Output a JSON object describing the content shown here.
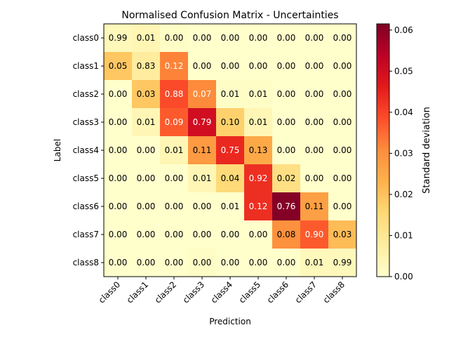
{
  "chart_data": {
    "type": "heatmap",
    "title": "Normalised Confusion Matrix - Uncertainties",
    "xlabel": "Prediction",
    "ylabel": "Label",
    "x_categories": [
      "class0",
      "class1",
      "class2",
      "class3",
      "class4",
      "class5",
      "class6",
      "class7",
      "class8"
    ],
    "y_categories": [
      "class0",
      "class1",
      "class2",
      "class3",
      "class4",
      "class5",
      "class6",
      "class7",
      "class8"
    ],
    "cell_labels": [
      [
        "0.99",
        "0.01",
        "0.00",
        "0.00",
        "0.00",
        "0.00",
        "0.00",
        "0.00",
        "0.00"
      ],
      [
        "0.05",
        "0.83",
        "0.12",
        "0.00",
        "0.00",
        "0.00",
        "0.00",
        "0.00",
        "0.00"
      ],
      [
        "0.00",
        "0.03",
        "0.88",
        "0.07",
        "0.01",
        "0.01",
        "0.00",
        "0.00",
        "0.00"
      ],
      [
        "0.00",
        "0.01",
        "0.09",
        "0.79",
        "0.10",
        "0.01",
        "0.00",
        "0.00",
        "0.00"
      ],
      [
        "0.00",
        "0.00",
        "0.01",
        "0.11",
        "0.75",
        "0.13",
        "0.00",
        "0.00",
        "0.00"
      ],
      [
        "0.00",
        "0.00",
        "0.00",
        "0.01",
        "0.04",
        "0.92",
        "0.02",
        "0.00",
        "0.00"
      ],
      [
        "0.00",
        "0.00",
        "0.00",
        "0.00",
        "0.01",
        "0.12",
        "0.76",
        "0.11",
        "0.00"
      ],
      [
        "0.00",
        "0.00",
        "0.00",
        "0.00",
        "0.00",
        "0.00",
        "0.08",
        "0.90",
        "0.03"
      ],
      [
        "0.00",
        "0.00",
        "0.00",
        "0.00",
        "0.00",
        "0.00",
        "0.00",
        "0.01",
        "0.99"
      ]
    ],
    "std_dev": [
      [
        0.003,
        0.004,
        0.001,
        0.0,
        0.0,
        0.0,
        0.0,
        0.0,
        0.0
      ],
      [
        0.019,
        0.008,
        0.032,
        0.0,
        0.0,
        0.0,
        0.0,
        0.0,
        0.0
      ],
      [
        0.0,
        0.019,
        0.039,
        0.031,
        0.001,
        0.001,
        0.0,
        0.0,
        0.0
      ],
      [
        0.0,
        0.004,
        0.037,
        0.05,
        0.017,
        0.004,
        0.0,
        0.0,
        0.0
      ],
      [
        0.0,
        0.0,
        0.004,
        0.028,
        0.044,
        0.025,
        0.0,
        0.0,
        0.0
      ],
      [
        0.0,
        0.0,
        0.0,
        0.004,
        0.015,
        0.043,
        0.013,
        0.0,
        0.0
      ],
      [
        0.0,
        0.0,
        0.0,
        0.0,
        0.0,
        0.043,
        0.061,
        0.027,
        0.0
      ],
      [
        0.0,
        0.0,
        0.0,
        0.0,
        0.0,
        0.0,
        0.03,
        0.037,
        0.021
      ],
      [
        0.0,
        0.0,
        0.0,
        0.001,
        0.0,
        0.0,
        0.0,
        0.003,
        0.003
      ]
    ],
    "colorbar": {
      "label": "Standard deviation",
      "range": [
        0,
        0.0615
      ],
      "ticks": [
        "0.00",
        "0.01",
        "0.02",
        "0.03",
        "0.04",
        "0.05",
        "0.06"
      ],
      "tick_values": [
        0,
        0.01,
        0.02,
        0.03,
        0.04,
        0.05,
        0.06
      ],
      "colormap": "YlOrRd"
    }
  }
}
